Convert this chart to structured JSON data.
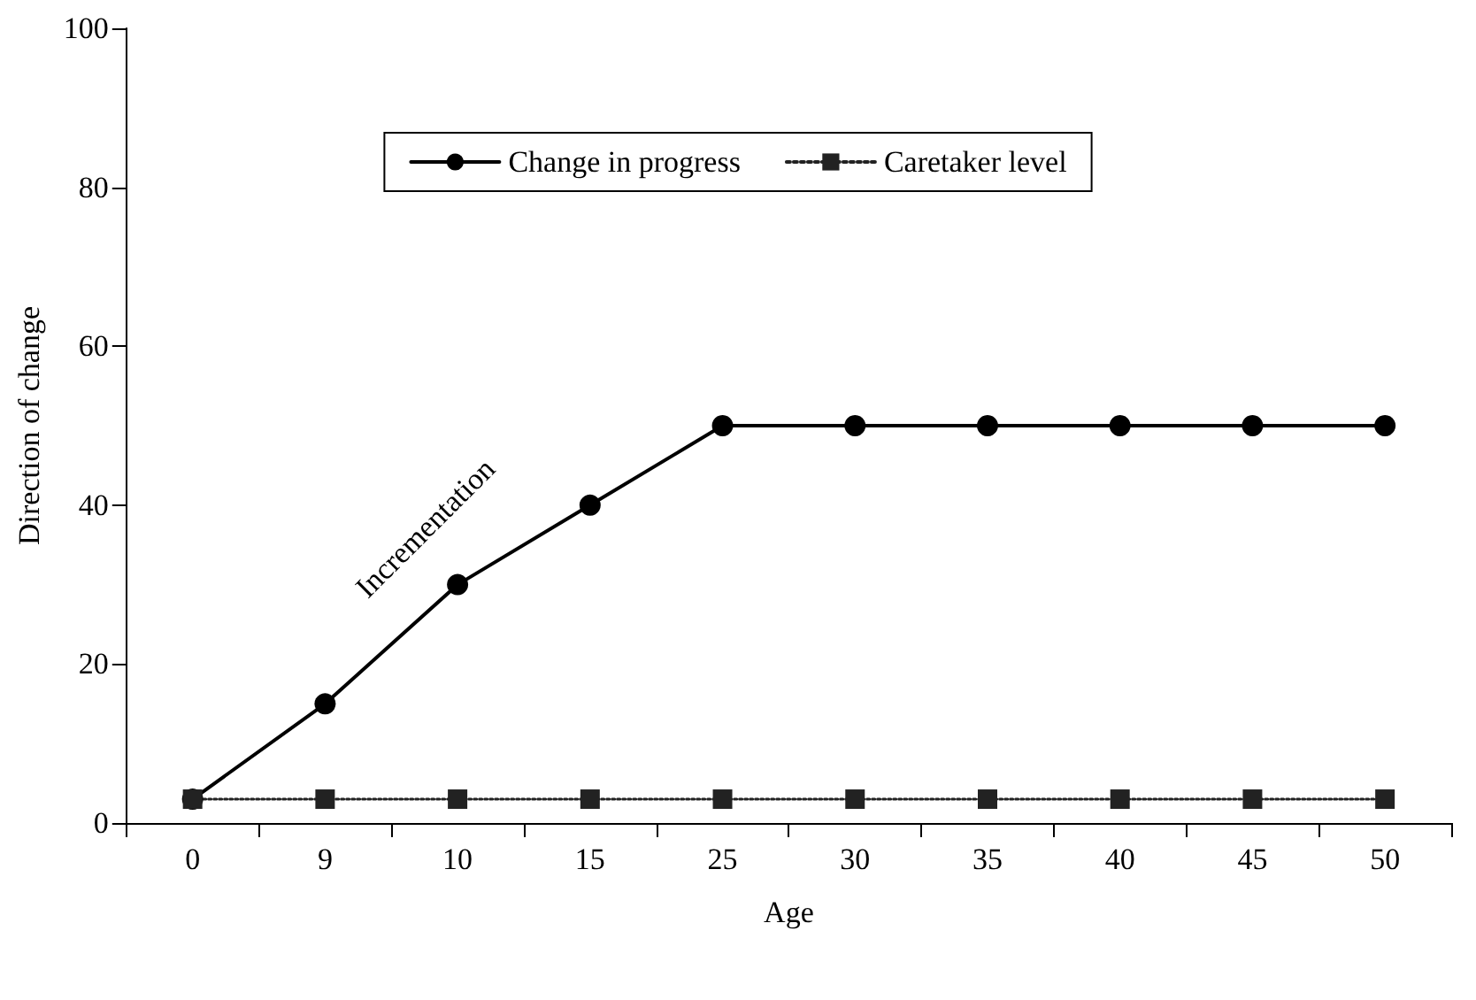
{
  "chart_data": {
    "type": "line",
    "xlabel": "Age",
    "ylabel": "Direction of change",
    "categories": [
      "0",
      "9",
      "10",
      "15",
      "25",
      "30",
      "35",
      "40",
      "45",
      "50"
    ],
    "series": [
      {
        "name": "Change in progress",
        "color": "#000000",
        "marker": "circle",
        "line_style": "solid",
        "values": [
          3,
          15,
          30,
          40,
          50,
          50,
          50,
          50,
          50,
          50
        ]
      },
      {
        "name": "Caretaker level",
        "color": "#222222",
        "marker": "square",
        "line_style": "dotted",
        "values": [
          3,
          3,
          3,
          3,
          3,
          3,
          3,
          3,
          3,
          3
        ]
      }
    ],
    "ylim": [
      0,
      100
    ],
    "yticks": [
      0,
      20,
      40,
      60,
      80,
      100
    ],
    "grid": false,
    "legend": "top",
    "annotations": [
      "Incrementation"
    ]
  }
}
